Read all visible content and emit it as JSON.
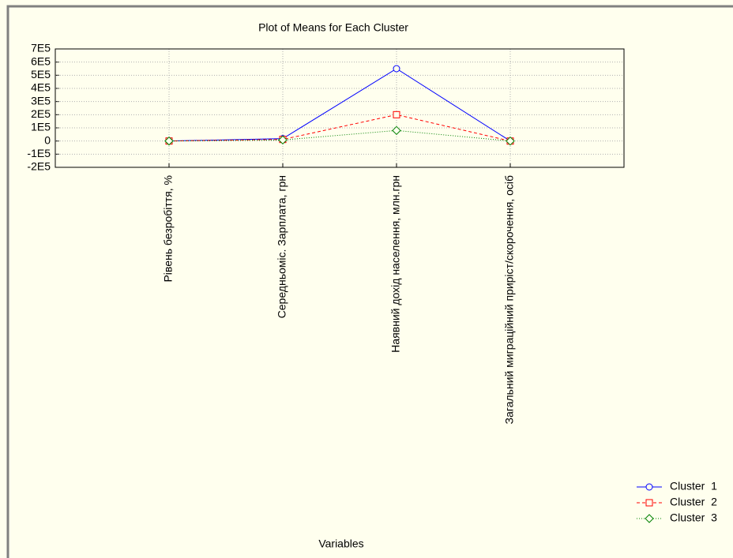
{
  "chart_data": {
    "type": "line",
    "title": "Plot of Means for Each Cluster",
    "xlabel": "Variables",
    "categories": [
      "Рівень безробіття, %",
      "Середньоміс. Зарплата, грн",
      "Наявний дохід населення, млн.грн",
      "Загальний миграційний приріст/скорочення, осіб"
    ],
    "series": [
      {
        "name": "Cluster  1",
        "color": "#0000ff",
        "marker": "circle",
        "line_style": "solid",
        "values": [
          9,
          18000,
          550000,
          100
        ]
      },
      {
        "name": "Cluster  2",
        "color": "#ff0000",
        "marker": "square",
        "line_style": "dashed",
        "values": [
          7,
          12000,
          200000,
          -200
        ]
      },
      {
        "name": "Cluster  3",
        "color": "#008000",
        "marker": "diamond",
        "line_style": "dotted",
        "values": [
          8,
          8000,
          80000,
          -100
        ]
      }
    ],
    "ylim": [
      -200000,
      700000
    ],
    "yticks": [
      {
        "value": 700000,
        "label": "7E5"
      },
      {
        "value": 600000,
        "label": "6E5"
      },
      {
        "value": 500000,
        "label": "5E5"
      },
      {
        "value": 400000,
        "label": "4E5"
      },
      {
        "value": 300000,
        "label": "3E5"
      },
      {
        "value": 200000,
        "label": "2E5"
      },
      {
        "value": 100000,
        "label": "1E5"
      },
      0,
      {
        "value": -100000,
        "label": "-1E5"
      },
      {
        "value": -200000,
        "label": "-2E5"
      }
    ],
    "grid": true,
    "legend": "lower right"
  }
}
